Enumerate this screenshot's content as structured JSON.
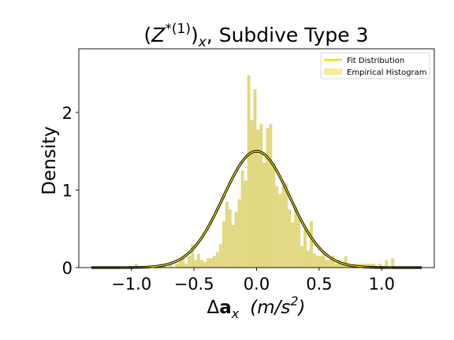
{
  "chart_data": {
    "type": "histogram",
    "title_parts": {
      "open": "(",
      "Z": "Z",
      "sup": "*(1)",
      "close": ")",
      "sub": "x",
      "rest": ", Subdive Type 3"
    },
    "xlabel_parts": {
      "delta": "Δ",
      "a": "a",
      "sub": "x",
      "unit": "(m/s",
      "pow": "2",
      "close": ")"
    },
    "ylabel": "Density",
    "xlim": [
      -1.42,
      1.42
    ],
    "ylim": [
      0,
      2.82
    ],
    "xticks": [
      {
        "v": -1.0,
        "label": "−1.0"
      },
      {
        "v": -0.5,
        "label": "−0.5"
      },
      {
        "v": 0.0,
        "label": "0.0"
      },
      {
        "v": 0.5,
        "label": "0.5"
      },
      {
        "v": 1.0,
        "label": "1.0"
      }
    ],
    "yticks": [
      {
        "v": 0,
        "label": "0"
      },
      {
        "v": 1,
        "label": "1"
      },
      {
        "v": 2,
        "label": "2"
      }
    ],
    "hist_color": "#e2d882",
    "fit_color": "#f0e000",
    "fit_outline_color": "#000000",
    "legend": {
      "placement": "top-right",
      "entries": [
        {
          "label": "Fit Distribution",
          "kind": "line",
          "color": "#f0e000"
        },
        {
          "label": "Empirical Histogram",
          "kind": "patch",
          "color": "#f5ec96"
        }
      ]
    },
    "fit": {
      "distribution": "normal",
      "mean": 0.0,
      "std": 0.266,
      "x_range": [
        -1.32,
        1.32
      ]
    },
    "bin_width": 0.025,
    "bins": [
      [
        -0.975,
        0.05
      ],
      [
        -0.775,
        0.05
      ],
      [
        -0.75,
        0.05
      ],
      [
        -0.7,
        0.05
      ],
      [
        -0.65,
        0.05
      ],
      [
        -0.625,
        0.1
      ],
      [
        -0.6,
        0.12
      ],
      [
        -0.575,
        0.05
      ],
      [
        -0.55,
        0.15
      ],
      [
        -0.525,
        0.3
      ],
      [
        -0.5,
        0.1
      ],
      [
        -0.475,
        0.18
      ],
      [
        -0.45,
        0.1
      ],
      [
        -0.425,
        0.07
      ],
      [
        -0.4,
        0.12
      ],
      [
        -0.375,
        0.12
      ],
      [
        -0.35,
        0.15
      ],
      [
        -0.325,
        0.2
      ],
      [
        -0.3,
        0.3
      ],
      [
        -0.275,
        0.6
      ],
      [
        -0.25,
        0.85
      ],
      [
        -0.225,
        0.75
      ],
      [
        -0.2,
        0.55
      ],
      [
        -0.175,
        0.72
      ],
      [
        -0.15,
        0.88
      ],
      [
        -0.125,
        1.25
      ],
      [
        -0.1,
        1.12
      ],
      [
        -0.075,
        2.48
      ],
      [
        -0.05,
        1.9
      ],
      [
        -0.025,
        2.3
      ],
      [
        0.0,
        1.78
      ],
      [
        0.025,
        1.85
      ],
      [
        0.05,
        1.35
      ],
      [
        0.075,
        1.8
      ],
      [
        0.1,
        1.85
      ],
      [
        0.125,
        1.35
      ],
      [
        0.15,
        1.05
      ],
      [
        0.175,
        0.95
      ],
      [
        0.2,
        1.05
      ],
      [
        0.225,
        1.08
      ],
      [
        0.25,
        0.75
      ],
      [
        0.275,
        0.58
      ],
      [
        0.3,
        0.78
      ],
      [
        0.325,
        0.65
      ],
      [
        0.35,
        0.28
      ],
      [
        0.375,
        0.5
      ],
      [
        0.4,
        0.22
      ],
      [
        0.425,
        0.6
      ],
      [
        0.45,
        0.18
      ],
      [
        0.475,
        0.15
      ],
      [
        0.5,
        0.15
      ],
      [
        0.525,
        0.18
      ],
      [
        0.55,
        0.1
      ],
      [
        0.575,
        0.1
      ],
      [
        0.6,
        0.15
      ],
      [
        0.625,
        0.05
      ],
      [
        0.65,
        0.1
      ],
      [
        0.675,
        0.05
      ],
      [
        0.7,
        0.15
      ],
      [
        0.725,
        0.05
      ],
      [
        0.775,
        0.05
      ],
      [
        0.8,
        0.05
      ],
      [
        0.825,
        0.05
      ],
      [
        0.85,
        0.05
      ],
      [
        0.875,
        0.05
      ],
      [
        0.9,
        0.05
      ],
      [
        0.925,
        0.05
      ],
      [
        0.975,
        0.05
      ],
      [
        1.025,
        0.1
      ],
      [
        1.075,
        0.12
      ]
    ]
  }
}
